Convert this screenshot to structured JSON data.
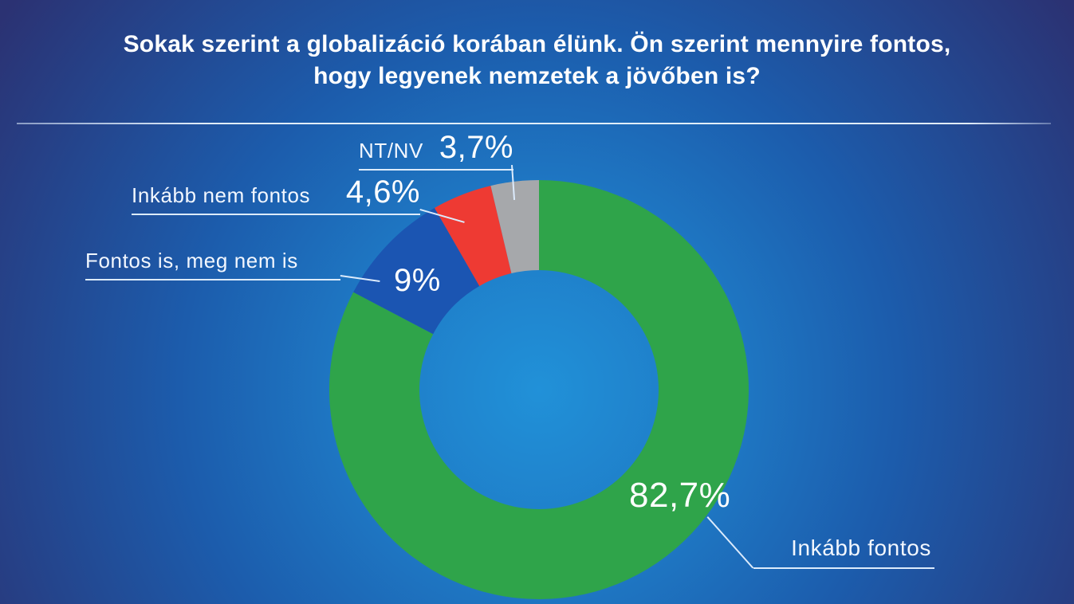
{
  "page": {
    "title_line1": "Sokak szerint a globalizáció korában élünk. Ön szerint mennyire fontos,",
    "title_line2": "hogy legyenek nemzetek a jövőben is?"
  },
  "theme": {
    "background_center": "#2191D8",
    "background_edge": "#2B3273",
    "leader_line_color": "#DCEBFC",
    "text_color": "#FFFFFF"
  },
  "chart_data": {
    "type": "pie",
    "subtype": "donut",
    "title": "Sokak szerint a globalizáció korában élünk. Ön szerint mennyire fontos, hogy legyenek nemzetek a jövőben is?",
    "unit": "%",
    "direction": "clockwise",
    "start_angle_deg": 0,
    "inner_radius_ratio": 0.57,
    "legend_position": "callout-labels",
    "grid": false,
    "segments": [
      {
        "label": "Inkább fontos",
        "value": 82.7,
        "display_value": "82,7%",
        "color": "#2FA44A"
      },
      {
        "label": "Fontos is, meg nem is",
        "value": 9,
        "display_value": "9%",
        "color": "#1B55B2"
      },
      {
        "label": "Inkább nem fontos",
        "value": 4.6,
        "display_value": "4,6%",
        "color": "#EE3A33"
      },
      {
        "label": "NT/NV",
        "value": 3.7,
        "display_value": "3,7%",
        "color": "#A6A8AB"
      }
    ]
  }
}
